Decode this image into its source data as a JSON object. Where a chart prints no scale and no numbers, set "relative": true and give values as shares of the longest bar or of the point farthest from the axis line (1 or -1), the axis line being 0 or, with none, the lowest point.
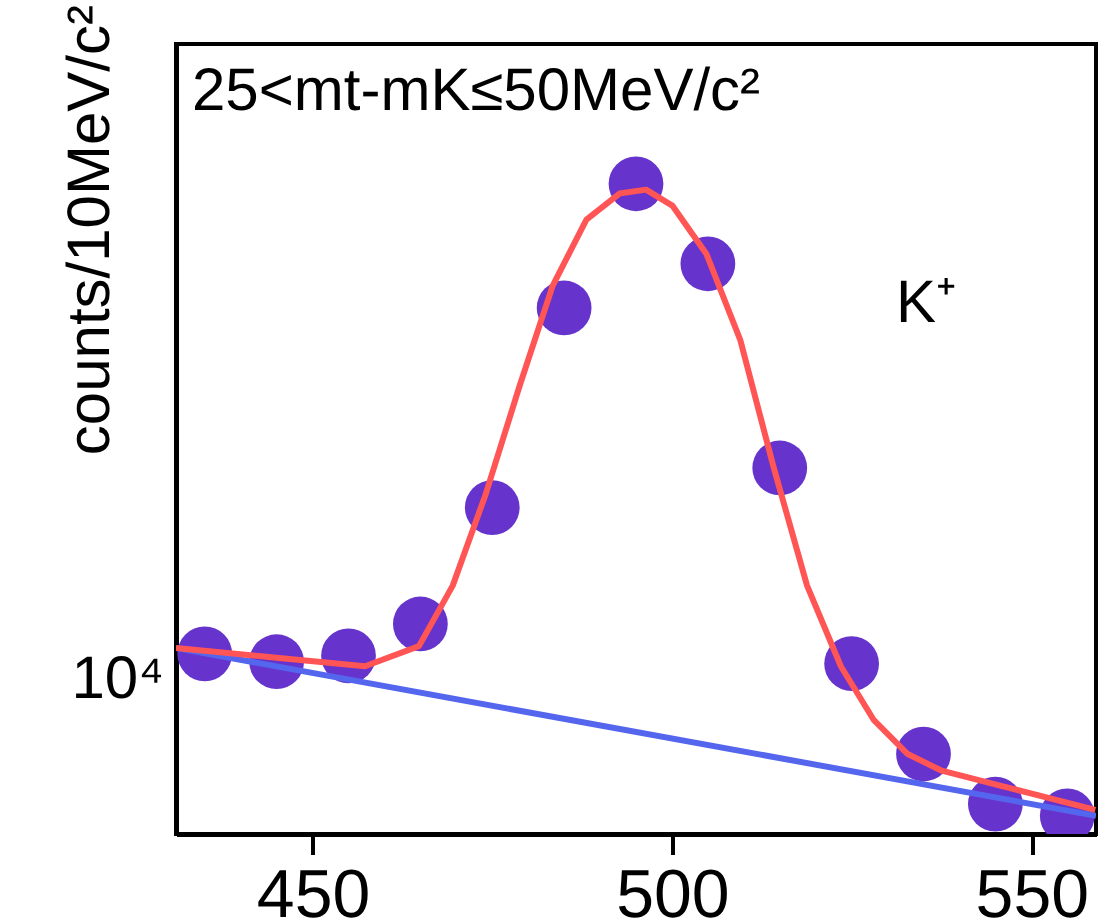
{
  "chart_data": {
    "type": "scatter",
    "ylabel": "counts/10MeV/c²",
    "relative": true,
    "annotations": [
      "25<mt-mK≤50MeV/c²",
      "K⁺",
      "10⁴"
    ],
    "xlim": [
      431,
      559
    ],
    "xticks": [
      450,
      500,
      550
    ],
    "grid": false,
    "series": [
      {
        "color": "#6633cc",
        "marker": "circle",
        "x": [
          435,
          445,
          455,
          465,
          475,
          485,
          495,
          505,
          515,
          525,
          535,
          545,
          555
        ],
        "values": [
          0.277,
          0.265,
          0.274,
          0.323,
          0.502,
          0.809,
          1,
          0.877,
          0.563,
          0.262,
          0.123,
          0.046,
          0.028
        ]
      },
      {
        "type": "line",
        "color": "#5566ee",
        "x": [
          431,
          559
        ],
        "values": [
          0.286,
          0.028
        ]
      },
      {
        "type": "line",
        "color": "#ff5555",
        "x": [
          431,
          445,
          457.3,
          464.8,
          469.5,
          474.1,
          478.8,
          483.4,
          488.1,
          492.7,
          496.4,
          500.1,
          504.8,
          509.5,
          514.1,
          518.8,
          523.5,
          528.1,
          532.8,
          537.4,
          545.8,
          558.9
        ],
        "values": [
          0.286,
          0.271,
          0.258,
          0.289,
          0.382,
          0.523,
          0.689,
          0.843,
          0.945,
          0.985,
          0.991,
          0.966,
          0.892,
          0.76,
          0.566,
          0.382,
          0.258,
          0.175,
          0.123,
          0.098,
          0.074,
          0.037
        ]
      }
    ]
  }
}
